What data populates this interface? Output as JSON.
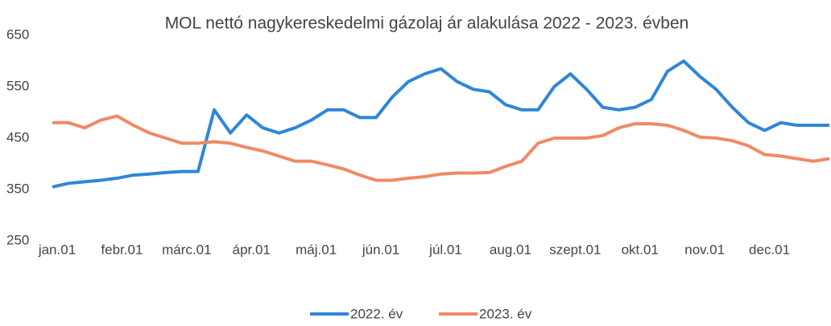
{
  "chart_data": {
    "type": "line",
    "title": "MOL nettó nagykereskedelmi gázolaj ár alakulása 2022 - 2023. évben",
    "categories": [
      "jan.01",
      null,
      null,
      null,
      "febr.01",
      null,
      null,
      null,
      "márc.01",
      null,
      null,
      null,
      "ápr.01",
      null,
      null,
      null,
      "máj.01",
      null,
      null,
      null,
      "jún.01",
      null,
      null,
      null,
      "júl.01",
      null,
      null,
      null,
      "aug.01",
      null,
      null,
      null,
      "szept.01",
      null,
      null,
      null,
      "okt.01",
      null,
      null,
      null,
      "nov.01",
      null,
      null,
      null,
      "dec.01",
      null,
      null,
      null,
      null
    ],
    "series": [
      {
        "name": "2022. év",
        "color": "#2f86d8",
        "values": [
          355,
          362,
          365,
          368,
          372,
          378,
          380,
          383,
          385,
          385,
          505,
          460,
          495,
          470,
          460,
          470,
          485,
          505,
          505,
          490,
          490,
          530,
          560,
          575,
          585,
          560,
          545,
          540,
          515,
          505,
          505,
          550,
          575,
          545,
          510,
          505,
          510,
          525,
          580,
          600,
          570,
          545,
          510,
          480,
          465,
          480,
          475,
          475,
          475
        ]
      },
      {
        "name": "2023. év",
        "color": "#f08a64",
        "values": [
          480,
          480,
          470,
          485,
          493,
          475,
          460,
          450,
          440,
          440,
          443,
          440,
          432,
          425,
          415,
          405,
          405,
          398,
          390,
          378,
          368,
          368,
          372,
          375,
          380,
          382,
          382,
          383,
          395,
          405,
          440,
          450,
          450,
          450,
          455,
          470,
          478,
          478,
          475,
          465,
          452,
          450,
          445,
          435,
          418,
          415,
          410,
          405,
          410
        ]
      }
    ],
    "ylim": [
      250,
      650
    ],
    "yticks": [
      250,
      350,
      450,
      550,
      650
    ],
    "grid": false,
    "legend": "bottom"
  }
}
